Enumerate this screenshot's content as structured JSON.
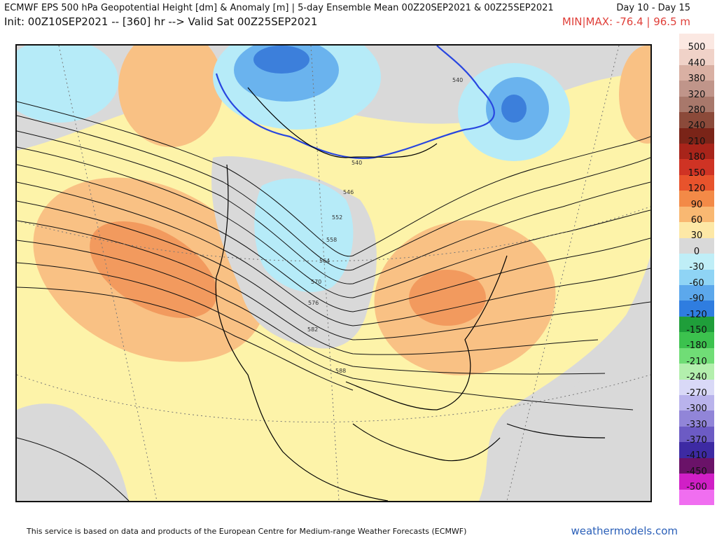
{
  "header": {
    "title": "ECMWF EPS 500 hPa Geopotential Height [dm] & Anomaly [m] | 5-day Ensemble Mean 00Z20SEP2021 & 00Z25SEP2021",
    "day_range": "Day 10 - Day 15",
    "init_line": "Init: 00Z10SEP2021 -- [360] hr --> Valid Sat 00Z25SEP2021",
    "minmax": "MIN|MAX: -76.4 | 96.5 m"
  },
  "legend": {
    "labels": [
      "500",
      "440",
      "380",
      "320",
      "280",
      "240",
      "210",
      "180",
      "150",
      "120",
      "90",
      "60",
      "30",
      "0",
      "-30",
      "-60",
      "-90",
      "-120",
      "-150",
      "-180",
      "-210",
      "-240",
      "-270",
      "-300",
      "-330",
      "-370",
      "-410",
      "-450",
      "-500"
    ],
    "colors": [
      "#fbe8e2",
      "#f0d2c8",
      "#d9b0a3",
      "#c0958a",
      "#a8786b",
      "#8b4a3a",
      "#7a2418",
      "#a8241a",
      "#cf3324",
      "#e8532c",
      "#f38a47",
      "#f9b872",
      "#fde8a6",
      "#d9d9d9",
      "#bfeef7",
      "#8fd4f5",
      "#5ca8ec",
      "#2f7de0",
      "#1f9e3a",
      "#3cc24e",
      "#70dd76",
      "#b3efad",
      "#d9d9f7",
      "#b9b3ec",
      "#9185d8",
      "#6c5bc4",
      "#3d2aa3",
      "#6a1268",
      "#d01fc6",
      "#f06ef0"
    ]
  },
  "map": {
    "contour_labels": [
      "540",
      "540",
      "546",
      "552",
      "558",
      "564",
      "570",
      "576",
      "582",
      "588"
    ],
    "colors": {
      "ocean_bg": "#d9d9d9",
      "positive_light": "#fdf3a9",
      "positive_mid": "#f9c184",
      "positive_strong": "#f29a5e",
      "negative_light": "#b6ebf8",
      "negative_mid": "#6ab3ee",
      "negative_strong": "#3c7fdb",
      "contour_540": "#2846e0"
    }
  },
  "footer": {
    "text": "This service is based on data and products of the European Centre for Medium-range Weather Forecasts (ECMWF)",
    "brand": "weathermodels.com"
  }
}
